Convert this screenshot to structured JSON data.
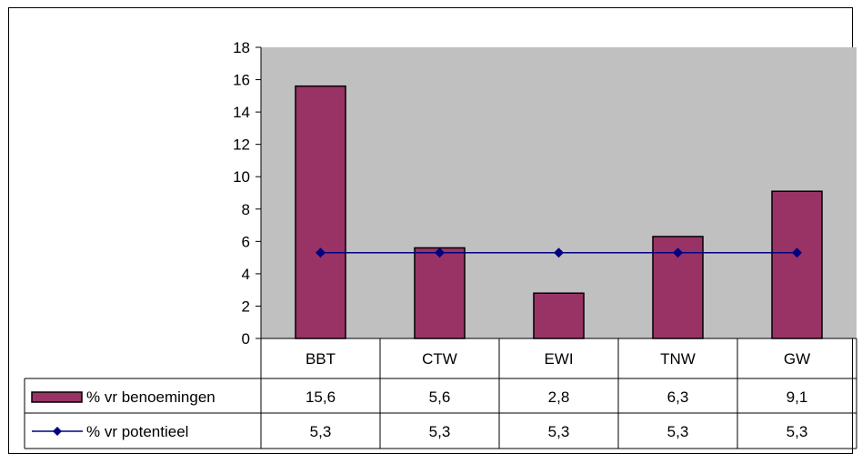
{
  "chart_data": {
    "type": "bar",
    "categories": [
      "BBT",
      "CTW",
      "EWI",
      "TNW",
      "GW"
    ],
    "series": [
      {
        "name": "% vr benoemingen",
        "kind": "bar",
        "color": "#993366",
        "values": [
          15.6,
          5.6,
          2.8,
          6.3,
          9.1
        ],
        "labels": [
          "15,6",
          "5,6",
          "2,8",
          "6,3",
          "9,1"
        ]
      },
      {
        "name": "% vr potentieel",
        "kind": "line",
        "color": "#000080",
        "values": [
          5.3,
          5.3,
          5.3,
          5.3,
          5.3
        ],
        "labels": [
          "5,3",
          "5,3",
          "5,3",
          "5,3",
          "5,3"
        ]
      }
    ],
    "ylim": [
      0,
      18
    ],
    "yticks": [
      0,
      2,
      4,
      6,
      8,
      10,
      12,
      14,
      16,
      18
    ],
    "plot_background": "#c0c0c0",
    "grid": false,
    "legend": "data-table"
  }
}
